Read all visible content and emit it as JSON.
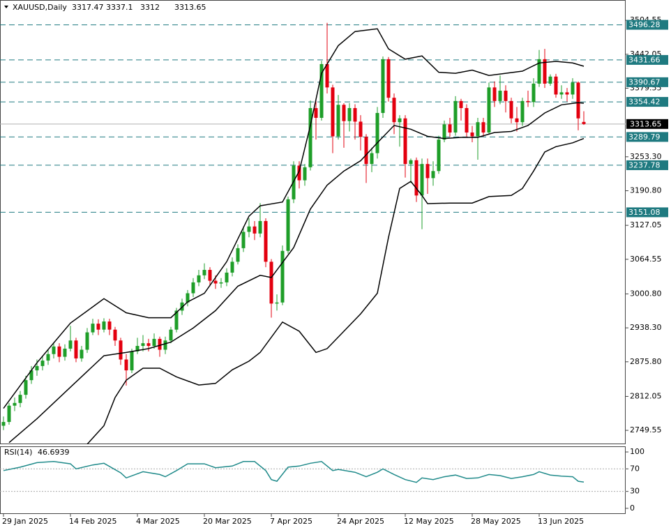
{
  "chart_data": {
    "type": "candlestick",
    "symbol": "XAUUSD,Daily",
    "up_color": "#1e9e28",
    "down_color": "#e3000f",
    "candles": {
      "open": [
        2758,
        2765,
        2795,
        2800,
        2815,
        2842,
        2860,
        2868,
        2878,
        2890,
        2904,
        2885,
        2900,
        2915,
        2882,
        2898,
        2930,
        2946,
        2935,
        2950,
        2935,
        2915,
        2880,
        2860,
        2895,
        2905,
        2910,
        2905,
        2918,
        2898,
        2915,
        2935,
        2970,
        2985,
        3002,
        3022,
        3035,
        3045,
        3025,
        3020,
        3022,
        3040,
        3060,
        3085,
        3115,
        3125,
        3112,
        3135,
        3060,
        2983,
        2985,
        3080,
        3175,
        3237,
        3210,
        3234,
        3343,
        3325,
        3424,
        3381,
        3291,
        3349,
        3319,
        3343,
        3318,
        3290,
        3240,
        3260,
        3334,
        3433,
        3362,
        3317,
        3324,
        3240,
        3247,
        3182,
        3240,
        3214,
        3227,
        3285,
        3313,
        3298,
        3356,
        3343,
        3298,
        3291,
        3317,
        3298,
        3381,
        3356,
        3375,
        3356,
        3324,
        3317,
        3356,
        3354,
        3388,
        3433,
        3388,
        3401,
        3368,
        3372,
        3368,
        3390,
        3317.47
      ],
      "high": [
        2775,
        2800,
        2810,
        2822,
        2850,
        2868,
        2880,
        2886,
        2900,
        2912,
        2910,
        2908,
        2942,
        2920,
        2905,
        2938,
        2955,
        2954,
        2956,
        2955,
        2940,
        2920,
        2890,
        2900,
        2920,
        2925,
        2918,
        2928,
        2922,
        2922,
        2940,
        2975,
        2992,
        3008,
        3030,
        3045,
        3057,
        3050,
        3035,
        3030,
        3048,
        3068,
        3092,
        3125,
        3140,
        3135,
        3168,
        3140,
        3065,
        3000,
        3090,
        3180,
        3245,
        3245,
        3240,
        3357,
        3360,
        3430,
        3500,
        3386,
        3367,
        3352,
        3352,
        3350,
        3330,
        3295,
        3270,
        3345,
        3438,
        3437,
        3370,
        3330,
        3330,
        3250,
        3252,
        3250,
        3250,
        3245,
        3292,
        3320,
        3325,
        3365,
        3360,
        3350,
        3310,
        3325,
        3325,
        3390,
        3392,
        3403,
        3385,
        3362,
        3345,
        3362,
        3375,
        3398,
        3450,
        3452,
        3405,
        3406,
        3385,
        3380,
        3398,
        3392,
        3337.1
      ],
      "low": [
        2750,
        2760,
        2785,
        2792,
        2808,
        2835,
        2850,
        2860,
        2870,
        2882,
        2875,
        2878,
        2895,
        2875,
        2876,
        2892,
        2925,
        2925,
        2930,
        2925,
        2905,
        2870,
        2832,
        2855,
        2890,
        2895,
        2895,
        2900,
        2885,
        2890,
        2910,
        2930,
        2962,
        2978,
        2995,
        3015,
        3028,
        3015,
        3010,
        3012,
        3015,
        3033,
        3055,
        3078,
        3105,
        3100,
        3105,
        3050,
        2957,
        2970,
        2980,
        3075,
        3168,
        3195,
        3200,
        3228,
        3285,
        3320,
        3370,
        3260,
        3285,
        3270,
        3300,
        3285,
        3265,
        3205,
        3225,
        3250,
        3325,
        3355,
        3295,
        3272,
        3215,
        3205,
        3170,
        3120,
        3185,
        3200,
        3222,
        3280,
        3290,
        3292,
        3320,
        3290,
        3280,
        3248,
        3290,
        3295,
        3345,
        3350,
        3335,
        3315,
        3300,
        3310,
        3345,
        3345,
        3382,
        3380,
        3384,
        3362,
        3360,
        3355,
        3360,
        3302,
        3312
      ],
      "close": [
        2765,
        2795,
        2800,
        2815,
        2842,
        2860,
        2868,
        2878,
        2890,
        2904,
        2885,
        2900,
        2915,
        2882,
        2898,
        2930,
        2946,
        2935,
        2950,
        2935,
        2915,
        2880,
        2860,
        2895,
        2905,
        2910,
        2905,
        2918,
        2898,
        2915,
        2935,
        2970,
        2985,
        3002,
        3022,
        3035,
        3045,
        3025,
        3020,
        3022,
        3040,
        3060,
        3085,
        3115,
        3125,
        3112,
        3135,
        3060,
        2983,
        2985,
        3080,
        3175,
        3237,
        3210,
        3234,
        3343,
        3325,
        3424,
        3381,
        3291,
        3349,
        3319,
        3343,
        3318,
        3290,
        3240,
        3260,
        3334,
        3433,
        3362,
        3317,
        3324,
        3240,
        3247,
        3182,
        3240,
        3214,
        3227,
        3285,
        3313,
        3298,
        3356,
        3343,
        3298,
        3291,
        3317,
        3298,
        3381,
        3356,
        3375,
        3356,
        3324,
        3317,
        3356,
        3354,
        3388,
        3433,
        3388,
        3401,
        3368,
        3372,
        3368,
        3390,
        3324,
        3313.65
      ]
    },
    "xlim": [
      -0.625,
      111.5
    ],
    "ylim": [
      2724,
      3542
    ],
    "yticks": [
      3504.55,
      3442.05,
      3379.55,
      {
        "value": 3253.3,
        "label": "3253.30"
      },
      {
        "value": 3190.8,
        "label": "3190.80"
      },
      3127.05,
      3064.55,
      {
        "value": 3000.8,
        "label": "3000.80"
      },
      {
        "value": 2938.3,
        "label": "2938.30"
      },
      {
        "value": 2875.8,
        "label": "2875.80"
      },
      2812.05,
      2749.55
    ],
    "x_ticks": [
      {
        "value": 0,
        "label": "29 Jan 2025"
      },
      {
        "value": 12,
        "label": "14 Feb 2025"
      },
      {
        "value": 24,
        "label": "4 Mar 2025"
      },
      {
        "value": 36,
        "label": "20 Mar 2025"
      },
      {
        "value": 48,
        "label": "7 Apr 2025"
      },
      {
        "value": 60,
        "label": "24 Apr 2025"
      },
      {
        "value": 72,
        "label": "12 May 2025"
      },
      {
        "value": 84,
        "label": "28 May 2025"
      },
      {
        "value": 96,
        "label": "13 Jun 2025"
      }
    ],
    "levels": {
      "color": "#1f7a80",
      "values": [
        3496.28,
        3431.66,
        3390.67,
        3354.42,
        3289.79,
        3237.78,
        3151.08
      ]
    },
    "bands": {
      "color": "#000000",
      "lines": [
        {
          "x": [
            0,
            6,
            12,
            16,
            18,
            22,
            26,
            30,
            33,
            36,
            40,
            44,
            46,
            50,
            53,
            55,
            57,
            60,
            63,
            67,
            69,
            72,
            75,
            78,
            81,
            84,
            87,
            90,
            93,
            96,
            99,
            102,
            104
          ],
          "values": [
            2790,
            2874,
            2947,
            2977,
            2992,
            2966,
            2957,
            2957,
            2986,
            3002,
            3060,
            3144,
            3163,
            3170,
            3227,
            3311,
            3407,
            3458,
            3484,
            3489,
            3452,
            3433,
            3439,
            3409,
            3407,
            3413,
            3403,
            3407,
            3411,
            3426,
            3429,
            3426,
            3420
          ]
        },
        {
          "x": [
            1,
            6,
            12,
            18,
            22,
            26,
            30,
            34,
            38,
            42,
            46,
            48,
            52,
            55,
            58,
            61,
            64,
            67,
            70,
            73,
            76,
            79,
            82,
            85,
            88,
            91,
            94,
            97,
            100,
            103,
            104
          ],
          "values": [
            2727,
            2771,
            2829,
            2887,
            2893,
            2900,
            2912,
            2938,
            2970,
            3015,
            3035,
            3031,
            3086,
            3157,
            3201,
            3227,
            3246,
            3279,
            3311,
            3304,
            3291,
            3287,
            3289,
            3289,
            3298,
            3300,
            3311,
            3334,
            3349,
            3353,
            3352
          ]
        },
        {
          "x": [
            15,
            18,
            20,
            22,
            25,
            28,
            31,
            35,
            38,
            41,
            44,
            46,
            50,
            53,
            56,
            58,
            61,
            64,
            67,
            69,
            71,
            73,
            75,
            76,
            80,
            84,
            87,
            91,
            93,
            95,
            97,
            99,
            102,
            104
          ],
          "values": [
            2724,
            2758,
            2810,
            2842,
            2864,
            2864,
            2848,
            2833,
            2836,
            2861,
            2877,
            2893,
            2949,
            2932,
            2893,
            2900,
            2932,
            2964,
            3002,
            3105,
            3195,
            3208,
            3182,
            3167,
            3168,
            3168,
            3180,
            3182,
            3195,
            3227,
            3262,
            3272,
            3279,
            3287
          ]
        }
      ]
    },
    "rsi": {
      "label": "RSI(14)",
      "color": "#1f8a8a",
      "ylim": [
        -10,
        110
      ],
      "yticks": [
        100,
        70,
        30,
        0
      ],
      "x": [
        0,
        3,
        6,
        9,
        12,
        13,
        16,
        18,
        21,
        22,
        25,
        28,
        29,
        31,
        33,
        36,
        38,
        41,
        43,
        45,
        47,
        48,
        49,
        51,
        53,
        55,
        57,
        59,
        60,
        63,
        65,
        67,
        68,
        70,
        72,
        74,
        75,
        77,
        79,
        81,
        83,
        85,
        87,
        89,
        91,
        93,
        95,
        96,
        98,
        100,
        102,
        103,
        104
      ],
      "values": [
        67,
        73,
        81,
        83,
        79,
        70,
        77,
        80,
        63,
        54,
        65,
        60,
        56,
        67,
        79,
        79,
        72,
        75,
        83,
        83,
        67,
        51,
        48,
        73,
        75,
        80,
        83,
        67,
        69,
        64,
        56,
        64,
        70,
        60,
        51,
        46,
        54,
        51,
        56,
        59,
        53,
        54,
        60,
        58,
        53,
        56,
        60,
        65,
        59,
        57,
        56,
        48,
        46.6939
      ]
    }
  }
}
